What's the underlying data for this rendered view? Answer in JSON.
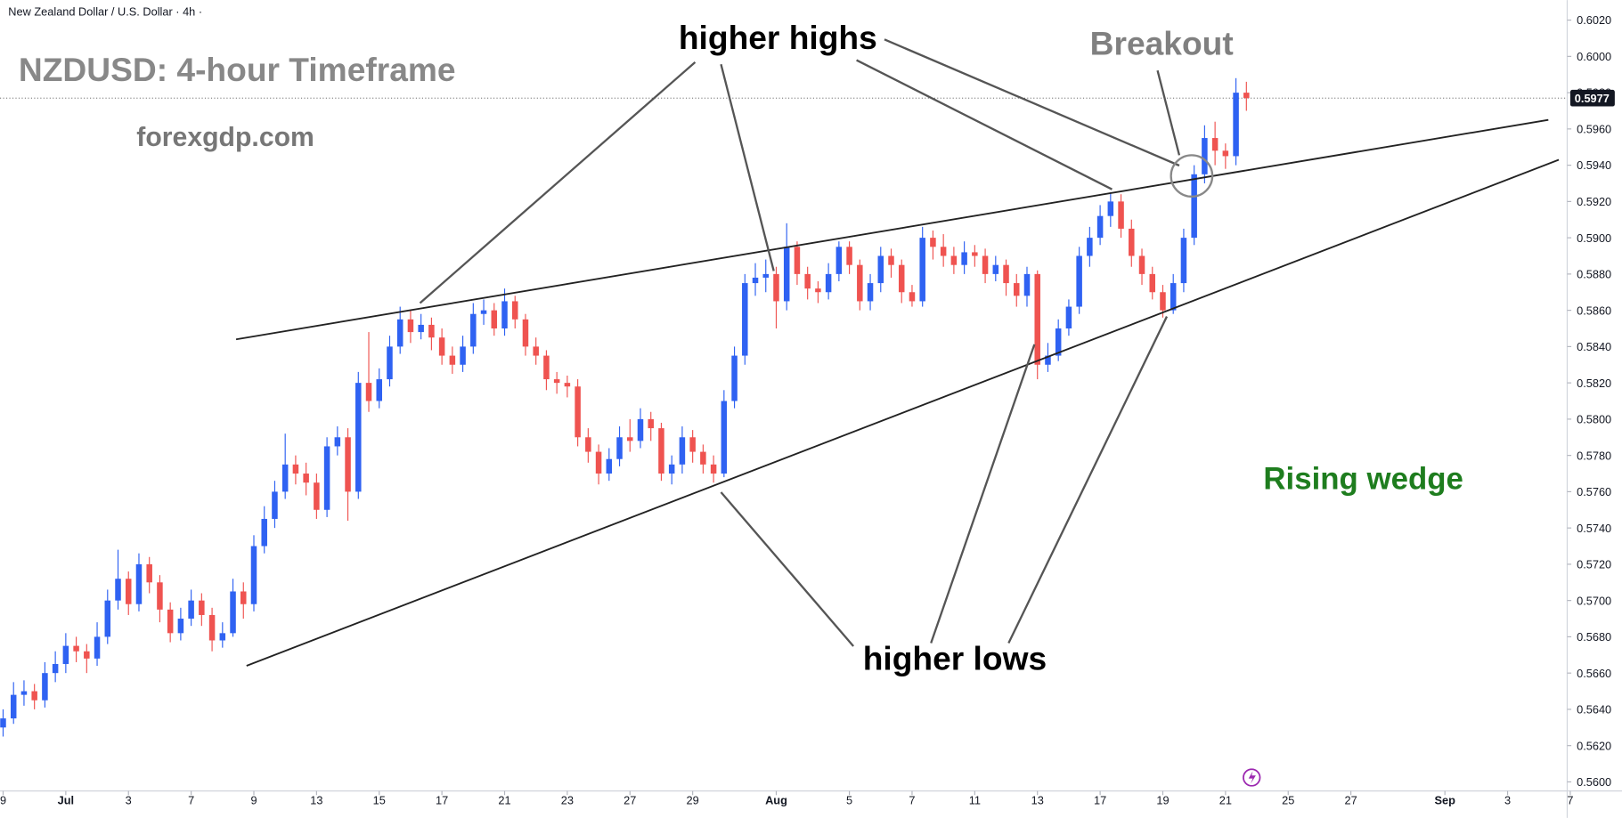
{
  "chart_data": {
    "type": "candlestick",
    "header": "New Zealand Dollar / U.S. Dollar · 4h ·",
    "title": "NZDUSD: 4-hour Timeframe",
    "subtitle": "forexgdp.com",
    "annotations": {
      "higher_highs": "higher highs",
      "breakout": "Breakout",
      "higher_lows": "higher lows",
      "pattern": "Rising wedge"
    },
    "up_color": "#2f62f2",
    "down_color": "#ef5350",
    "open": [
      0.563,
      0.5635,
      0.5648,
      0.565,
      0.5645,
      0.566,
      0.5665,
      0.5675,
      0.5672,
      0.5668,
      0.568,
      0.57,
      0.5712,
      0.5698,
      0.572,
      0.571,
      0.5695,
      0.5682,
      0.569,
      0.57,
      0.5692,
      0.5678,
      0.5682,
      0.5705,
      0.5698,
      0.573,
      0.5745,
      0.576,
      0.5775,
      0.577,
      0.5765,
      0.575,
      0.5785,
      0.579,
      0.576,
      0.582,
      0.581,
      0.5822,
      0.584,
      0.5855,
      0.5848,
      0.5852,
      0.5845,
      0.5835,
      0.583,
      0.584,
      0.5858,
      0.586,
      0.585,
      0.5865,
      0.5855,
      0.584,
      0.5835,
      0.5822,
      0.582,
      0.5818,
      0.579,
      0.5782,
      0.577,
      0.5778,
      0.579,
      0.5788,
      0.58,
      0.5795,
      0.577,
      0.5775,
      0.579,
      0.5782,
      0.5775,
      0.577,
      0.581,
      0.5835,
      0.5875,
      0.5878,
      0.588,
      0.5865,
      0.5895,
      0.588,
      0.5872,
      0.587,
      0.588,
      0.5895,
      0.5885,
      0.5865,
      0.5875,
      0.589,
      0.5885,
      0.587,
      0.5865,
      0.59,
      0.5895,
      0.589,
      0.5885,
      0.5892,
      0.589,
      0.588,
      0.5885,
      0.5875,
      0.5868,
      0.588,
      0.583,
      0.5835,
      0.585,
      0.5862,
      0.589,
      0.59,
      0.5912,
      0.592,
      0.5905,
      0.589,
      0.588,
      0.587,
      0.586,
      0.5875,
      0.59,
      0.5935,
      0.5955,
      0.5948,
      0.5945,
      0.598
    ],
    "high": [
      0.564,
      0.5655,
      0.5656,
      0.5654,
      0.5666,
      0.5672,
      0.5682,
      0.568,
      0.5676,
      0.5688,
      0.5706,
      0.5728,
      0.5716,
      0.5726,
      0.5724,
      0.5714,
      0.5699,
      0.5696,
      0.5706,
      0.5704,
      0.5696,
      0.5688,
      0.5712,
      0.571,
      0.5736,
      0.5752,
      0.5766,
      0.5792,
      0.578,
      0.5776,
      0.577,
      0.579,
      0.5796,
      0.5795,
      0.5826,
      0.5848,
      0.5828,
      0.5846,
      0.5862,
      0.586,
      0.5858,
      0.5856,
      0.585,
      0.584,
      0.5846,
      0.5864,
      0.5866,
      0.5864,
      0.5872,
      0.5868,
      0.5858,
      0.5845,
      0.5838,
      0.5826,
      0.5824,
      0.5822,
      0.5795,
      0.5786,
      0.5784,
      0.5796,
      0.58,
      0.5806,
      0.5804,
      0.5798,
      0.578,
      0.5796,
      0.5794,
      0.5786,
      0.578,
      0.5816,
      0.584,
      0.588,
      0.5886,
      0.5888,
      0.5884,
      0.5908,
      0.5898,
      0.5884,
      0.5876,
      0.5886,
      0.5898,
      0.5898,
      0.5888,
      0.588,
      0.5895,
      0.5894,
      0.5888,
      0.5874,
      0.5906,
      0.5904,
      0.5902,
      0.5895,
      0.5898,
      0.5896,
      0.5894,
      0.589,
      0.5888,
      0.588,
      0.5884,
      0.5882,
      0.5842,
      0.5855,
      0.5866,
      0.5895,
      0.5906,
      0.5918,
      0.5925,
      0.5924,
      0.591,
      0.5894,
      0.5884,
      0.5874,
      0.588,
      0.5905,
      0.594,
      0.5962,
      0.5964,
      0.5952,
      0.5988,
      0.5986
    ],
    "low": [
      0.5625,
      0.5632,
      0.5642,
      0.564,
      0.5641,
      0.5655,
      0.566,
      0.5666,
      0.566,
      0.5664,
      0.5676,
      0.5695,
      0.5692,
      0.5694,
      0.5704,
      0.5688,
      0.5677,
      0.5678,
      0.5686,
      0.5686,
      0.5672,
      0.5674,
      0.568,
      0.569,
      0.5694,
      0.5726,
      0.574,
      0.5756,
      0.5764,
      0.5758,
      0.5745,
      0.5746,
      0.578,
      0.5744,
      0.5756,
      0.5804,
      0.5806,
      0.5818,
      0.5836,
      0.5842,
      0.5844,
      0.5838,
      0.583,
      0.5825,
      0.5826,
      0.5836,
      0.5852,
      0.5846,
      0.5846,
      0.585,
      0.5835,
      0.583,
      0.5816,
      0.5814,
      0.5812,
      0.5785,
      0.5776,
      0.5764,
      0.5766,
      0.5774,
      0.5782,
      0.5784,
      0.5788,
      0.5766,
      0.5764,
      0.577,
      0.5776,
      0.577,
      0.5765,
      0.5768,
      0.5806,
      0.583,
      0.5868,
      0.587,
      0.585,
      0.586,
      0.5874,
      0.5866,
      0.5864,
      0.5866,
      0.5876,
      0.588,
      0.586,
      0.586,
      0.587,
      0.5878,
      0.5864,
      0.5862,
      0.5862,
      0.5888,
      0.5884,
      0.588,
      0.588,
      0.5884,
      0.5875,
      0.5876,
      0.5868,
      0.5862,
      0.5862,
      0.5822,
      0.5826,
      0.5832,
      0.5846,
      0.5858,
      0.5884,
      0.5896,
      0.5906,
      0.59,
      0.5884,
      0.5874,
      0.5866,
      0.5856,
      0.5858,
      0.587,
      0.5896,
      0.593,
      0.594,
      0.5938,
      0.594,
      0.597
    ],
    "close": [
      0.5635,
      0.5648,
      0.565,
      0.5645,
      0.566,
      0.5665,
      0.5675,
      0.5672,
      0.5668,
      0.568,
      0.57,
      0.5712,
      0.5698,
      0.572,
      0.571,
      0.5695,
      0.5682,
      0.569,
      0.57,
      0.5692,
      0.5678,
      0.5682,
      0.5705,
      0.5698,
      0.573,
      0.5745,
      0.576,
      0.5775,
      0.577,
      0.5765,
      0.575,
      0.5785,
      0.579,
      0.576,
      0.582,
      0.581,
      0.5822,
      0.584,
      0.5855,
      0.5848,
      0.5852,
      0.5845,
      0.5835,
      0.583,
      0.584,
      0.5858,
      0.586,
      0.585,
      0.5865,
      0.5855,
      0.584,
      0.5835,
      0.5822,
      0.582,
      0.5818,
      0.579,
      0.5782,
      0.577,
      0.5778,
      0.579,
      0.5788,
      0.58,
      0.5795,
      0.577,
      0.5775,
      0.579,
      0.5782,
      0.5775,
      0.577,
      0.581,
      0.5835,
      0.5875,
      0.5878,
      0.588,
      0.5865,
      0.5895,
      0.588,
      0.5872,
      0.587,
      0.588,
      0.5895,
      0.5885,
      0.5865,
      0.5875,
      0.589,
      0.5885,
      0.587,
      0.5865,
      0.59,
      0.5895,
      0.589,
      0.5885,
      0.5892,
      0.589,
      0.588,
      0.5885,
      0.5875,
      0.5868,
      0.588,
      0.583,
      0.5835,
      0.585,
      0.5862,
      0.589,
      0.59,
      0.5912,
      0.592,
      0.5905,
      0.589,
      0.588,
      0.587,
      0.586,
      0.5875,
      0.59,
      0.5935,
      0.5955,
      0.5948,
      0.5945,
      0.598,
      0.5977
    ],
    "last_price": {
      "value": 0.5977,
      "label": "0.5977"
    },
    "trendlines": [
      {
        "x": [
          22.3,
          147.9
        ],
        "y": [
          0.5844,
          0.5965
        ]
      },
      {
        "x": [
          23.3,
          148.9
        ],
        "y": [
          0.5664,
          0.5943
        ]
      }
    ],
    "xlim": [
      -0.3,
      150.2
    ],
    "xticks": [
      {
        "value": 0,
        "label": "9"
      },
      {
        "value": 6,
        "label": "Jul"
      },
      {
        "value": 12,
        "label": "3"
      },
      {
        "value": 18,
        "label": "7"
      },
      {
        "value": 24,
        "label": "9"
      },
      {
        "value": 30,
        "label": "13"
      },
      {
        "value": 36,
        "label": "15"
      },
      {
        "value": 42,
        "label": "17"
      },
      {
        "value": 48,
        "label": "21"
      },
      {
        "value": 54,
        "label": "23"
      },
      {
        "value": 60,
        "label": "27"
      },
      {
        "value": 66,
        "label": "29"
      },
      {
        "value": 74,
        "label": "Aug"
      },
      {
        "value": 81,
        "label": "5"
      },
      {
        "value": 87,
        "label": "7"
      },
      {
        "value": 93,
        "label": "11"
      },
      {
        "value": 99,
        "label": "13"
      },
      {
        "value": 105,
        "label": "17"
      },
      {
        "value": 111,
        "label": "19"
      },
      {
        "value": 117,
        "label": "21"
      },
      {
        "value": 123,
        "label": "25"
      },
      {
        "value": 129,
        "label": "27"
      },
      {
        "value": 138,
        "label": "Sep"
      },
      {
        "value": 144,
        "label": "3"
      },
      {
        "value": 150,
        "label": "7"
      }
    ],
    "ylim": [
      0.5595,
      0.6031
    ],
    "yticks": [
      {
        "value": 0.56,
        "label": "0.5600"
      },
      {
        "value": 0.562,
        "label": "0.5620"
      },
      {
        "value": 0.564,
        "label": "0.5640"
      },
      {
        "value": 0.566,
        "label": "0.5660"
      },
      {
        "value": 0.568,
        "label": "0.5680"
      },
      {
        "value": 0.57,
        "label": "0.5700"
      },
      {
        "value": 0.572,
        "label": "0.5720"
      },
      {
        "value": 0.574,
        "label": "0.5740"
      },
      {
        "value": 0.576,
        "label": "0.5760"
      },
      {
        "value": 0.578,
        "label": "0.5780"
      },
      {
        "value": 0.58,
        "label": "0.5800"
      },
      {
        "value": 0.582,
        "label": "0.5820"
      },
      {
        "value": 0.584,
        "label": "0.5840"
      },
      {
        "value": 0.586,
        "label": "0.5860"
      },
      {
        "value": 0.588,
        "label": "0.5880"
      },
      {
        "value": 0.59,
        "label": "0.5900"
      },
      {
        "value": 0.592,
        "label": "0.5920"
      },
      {
        "value": 0.594,
        "label": "0.5940"
      },
      {
        "value": 0.596,
        "label": "0.5960"
      },
      {
        "value": 0.598,
        "label": "0.5980"
      },
      {
        "value": 0.6,
        "label": "0.6000"
      },
      {
        "value": 0.602,
        "label": "0.6020"
      }
    ],
    "grid": false
  }
}
